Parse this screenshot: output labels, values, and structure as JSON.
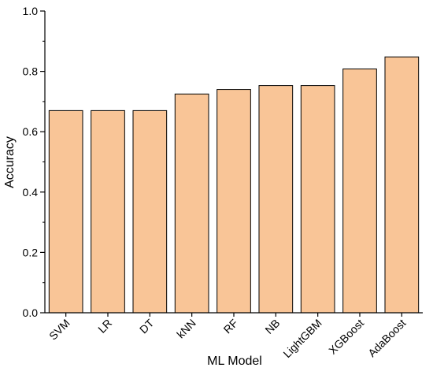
{
  "chart_data": {
    "type": "bar",
    "title": "",
    "xlabel": "ML Model",
    "ylabel": "Accuracy",
    "categories": [
      "SVM",
      "LR",
      "DT",
      "kNN",
      "RF",
      "NB",
      "LightGBM",
      "XGBoost",
      "AdaBoost"
    ],
    "values": [
      0.67,
      0.67,
      0.67,
      0.725,
      0.74,
      0.753,
      0.753,
      0.808,
      0.848
    ],
    "ylim": [
      0,
      1.0
    ],
    "yticks": [
      0.0,
      0.2,
      0.4,
      0.6,
      0.8,
      1.0
    ],
    "ytick_labels": [
      "0.0",
      "0.2",
      "0.4",
      "0.6",
      "0.8",
      "1.0"
    ],
    "grid": false,
    "legend": "none",
    "bar_color": "#F9C597",
    "bar_edge_color": "#000000"
  }
}
